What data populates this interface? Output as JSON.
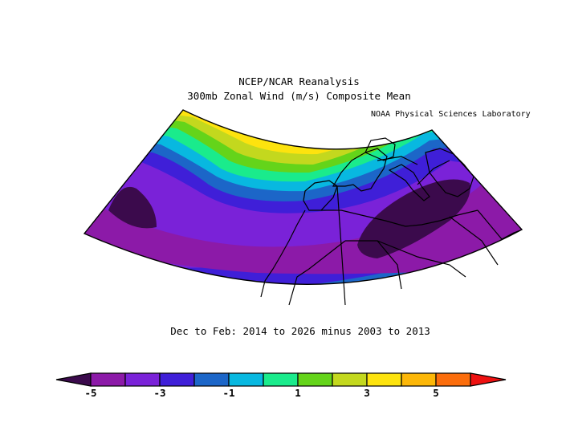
{
  "header": {
    "title_line1": "NCEP/NCAR Reanalysis",
    "title_line2": "300mb Zonal Wind (m/s) Composite Mean",
    "credit": "NOAA Physical Sciences Laboratory"
  },
  "subtitle": "Dec to Feb: 2014 to 2026 minus 2003 to 2013",
  "map": {
    "variable": "300mb Zonal Wind",
    "units": "m/s",
    "projection": "conic",
    "features": [
      "positive anomaly over North Atlantic",
      "negative anomaly over North Africa",
      "negative anomaly over mid Atlantic"
    ]
  },
  "colorbar": {
    "tick_labels": [
      "-5",
      "-3",
      "-1",
      "1",
      "3",
      "5"
    ],
    "colors": [
      "#3b0a4c",
      "#8c1aa8",
      "#7a22d8",
      "#3f1fd8",
      "#1c66c8",
      "#08b8e0",
      "#1aeb8c",
      "#64d41a",
      "#c3d81e",
      "#fde30e",
      "#fcb708",
      "#fb6d0c",
      "#ee1111"
    ]
  }
}
